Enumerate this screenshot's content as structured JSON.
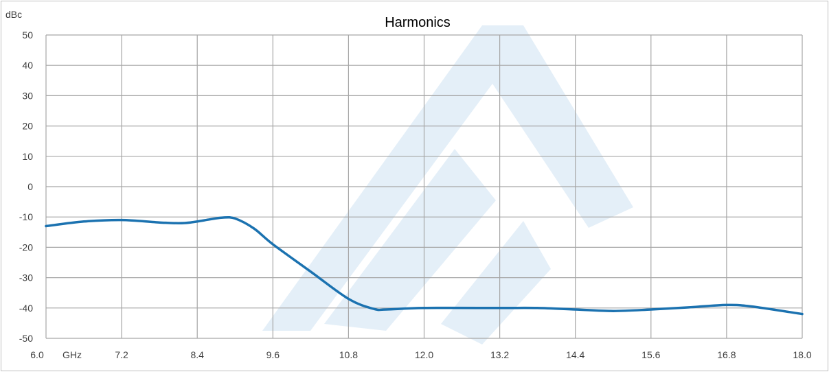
{
  "chart_data": {
    "type": "line",
    "title": "Harmonics",
    "ylabel": "dBc",
    "xunit": "GHz",
    "xlim": [
      6.0,
      18.0
    ],
    "ylim": [
      -50,
      50
    ],
    "x_ticks": [
      6.0,
      7.2,
      8.4,
      9.6,
      10.8,
      12.0,
      13.2,
      14.4,
      15.6,
      16.8,
      18.0
    ],
    "x_tick_labels": [
      "6.0",
      "7.2",
      "8.4",
      "9.6",
      "10.8",
      "12.0",
      "13.2",
      "14.4",
      "15.6",
      "16.8",
      "18.0"
    ],
    "y_ticks": [
      50,
      40,
      30,
      20,
      10,
      0,
      -10,
      -20,
      -30,
      -40,
      -50
    ],
    "y_tick_labels": [
      "50",
      "40",
      "30",
      "20",
      "10",
      "0",
      "-10",
      "-20",
      "-30",
      "-40",
      "-50"
    ],
    "grid": true,
    "legend": "none",
    "colors": {
      "series": "#1b72b0",
      "grid": "#a6a6a6",
      "watermark": "#dbe9f6"
    },
    "series": [
      {
        "x": [
          6.0,
          6.6,
          7.2,
          7.8,
          8.2,
          8.6,
          8.8,
          9.0,
          9.3,
          9.6,
          10.2,
          10.8,
          11.2,
          11.4,
          12.0,
          13.2,
          13.8,
          14.4,
          15.0,
          15.6,
          16.2,
          16.8,
          17.2,
          18.0
        ],
        "y": [
          -13,
          -11.5,
          -11,
          -11.8,
          -12,
          -10.8,
          -10.2,
          -10.5,
          -13.8,
          -19,
          -28,
          -37,
          -40.3,
          -40.5,
          -40,
          -40,
          -40,
          -40.5,
          -41,
          -40.5,
          -39.8,
          -39,
          -39.5,
          -42
        ]
      }
    ]
  }
}
